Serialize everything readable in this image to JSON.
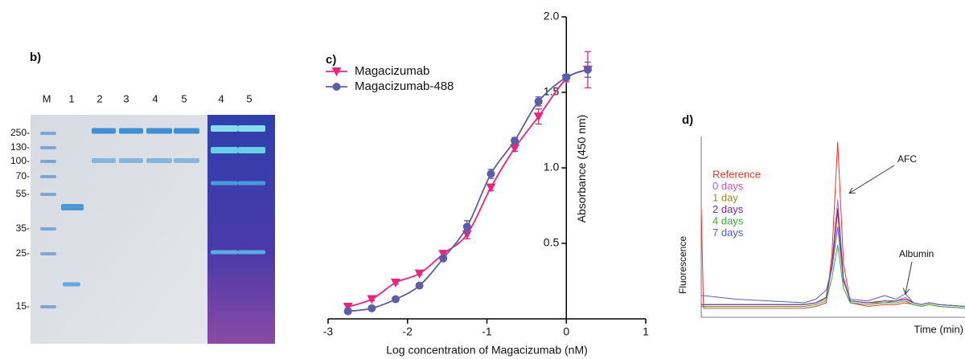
{
  "gel": {
    "label": "b)",
    "lanes": [
      "M",
      "1",
      "2",
      "3",
      "4",
      "5",
      "4",
      "5"
    ],
    "markers": [
      "250-",
      "130-",
      "100-",
      "70-",
      "55-",
      "35-",
      "25-",
      "15-"
    ]
  },
  "chart_data": [
    {
      "type": "scatter",
      "label": "c)",
      "xlabel": "Log concentration of Magacizumab (nM)",
      "ylabel": "Absorbance (450 nm)",
      "x": [
        -2.75,
        -2.45,
        -2.15,
        -1.85,
        -1.55,
        -1.25,
        -0.95,
        -0.65,
        -0.35,
        0,
        0.27
      ],
      "series": [
        {
          "name": "Magacizumab",
          "color": "#e8257c",
          "marker": "triangle",
          "values": [
            0.08,
            0.13,
            0.24,
            0.3,
            0.43,
            0.56,
            0.87,
            1.13,
            1.34,
            1.59,
            1.65
          ],
          "errors": [
            0.01,
            0.01,
            0.01,
            0.01,
            0.02,
            0.03,
            0.02,
            0.02,
            0.05,
            0.02,
            0.12
          ]
        },
        {
          "name": "Magacizumab-488",
          "color": "#5b5ea6",
          "marker": "circle",
          "values": [
            0.05,
            0.07,
            0.13,
            0.22,
            0.4,
            0.61,
            0.96,
            1.18,
            1.44,
            1.6,
            1.65
          ],
          "errors": [
            0.01,
            0.01,
            0.01,
            0.01,
            0.01,
            0.04,
            0.03,
            0.02,
            0.03,
            0.02,
            0.05
          ]
        }
      ],
      "xlim": [
        -3,
        1
      ],
      "xticks": [
        -3,
        -2,
        -1,
        0,
        1
      ],
      "ylim": [
        0,
        2
      ],
      "yticks": [
        {
          "value": 0.5,
          "label": "0.5"
        },
        {
          "value": 1,
          "label": "1.0"
        },
        {
          "value": 1.5,
          "label": "1.5"
        },
        {
          "value": 2,
          "label": "2.0"
        }
      ]
    },
    {
      "type": "line",
      "label": "d)",
      "xlabel": "Time (min)",
      "ylabel": "Fluorescence",
      "x": [
        0,
        0.2,
        3,
        6,
        9,
        10,
        10.9,
        11.4,
        11.9,
        12.4,
        13,
        14.5,
        16,
        17,
        17.8,
        18.5,
        19.2,
        19.9,
        20.7,
        23
      ],
      "series": [
        {
          "name": "Reference",
          "color": "#e8352c",
          "values": [
            0.6,
            0.05,
            0.05,
            0.05,
            0.05,
            0.06,
            0.08,
            0.35,
            0.97,
            0.3,
            0.08,
            0.06,
            0.07,
            0.07,
            0.08,
            0.07,
            0.06,
            0.07,
            0.06,
            0.05
          ]
        },
        {
          "name": "0 days",
          "color": "#c45cc4",
          "values": [
            0.07,
            0.07,
            0.07,
            0.07,
            0.07,
            0.08,
            0.11,
            0.3,
            0.65,
            0.22,
            0.09,
            0.08,
            0.09,
            0.09,
            0.11,
            0.08,
            0.07,
            0.08,
            0.07,
            0.06
          ]
        },
        {
          "name": "1 day",
          "color": "#9a8a30",
          "values": [
            0.07,
            0.07,
            0.07,
            0.07,
            0.07,
            0.08,
            0.1,
            0.28,
            0.58,
            0.2,
            0.09,
            0.08,
            0.08,
            0.09,
            0.1,
            0.08,
            0.07,
            0.08,
            0.07,
            0.06
          ]
        },
        {
          "name": "2 days",
          "color": "#7a2a8a",
          "values": [
            0.07,
            0.07,
            0.07,
            0.07,
            0.07,
            0.08,
            0.11,
            0.29,
            0.6,
            0.21,
            0.09,
            0.08,
            0.09,
            0.09,
            0.1,
            0.08,
            0.07,
            0.08,
            0.07,
            0.06
          ]
        },
        {
          "name": "4 days",
          "color": "#3aaa3a",
          "values": [
            0.06,
            0.06,
            0.06,
            0.06,
            0.06,
            0.07,
            0.09,
            0.22,
            0.4,
            0.16,
            0.08,
            0.07,
            0.08,
            0.08,
            0.09,
            0.07,
            0.06,
            0.07,
            0.06,
            0.05
          ]
        },
        {
          "name": "7 days",
          "color": "#5060c0",
          "values": [
            0.12,
            0.12,
            0.1,
            0.09,
            0.08,
            0.1,
            0.15,
            0.27,
            0.5,
            0.2,
            0.1,
            0.09,
            0.12,
            0.1,
            0.13,
            0.08,
            0.07,
            0.08,
            0.07,
            0.06
          ]
        }
      ],
      "xlim": [
        0,
        23
      ],
      "ylim": [
        0,
        1
      ],
      "annotations": [
        "AFC",
        "Albumin"
      ]
    }
  ]
}
